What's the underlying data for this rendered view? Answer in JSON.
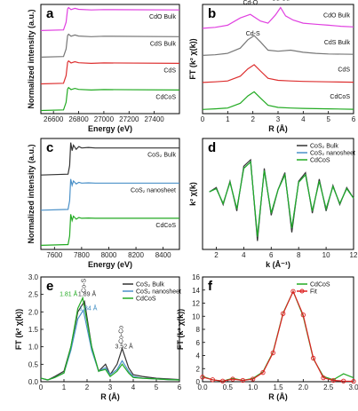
{
  "chart_data": [
    {
      "id": "a",
      "type": "line",
      "panel_label": "a",
      "xlabel": "Energy (eV)",
      "ylabel": "Normalized intensity (a.u.)",
      "xlim": [
        26500,
        27600
      ],
      "xticks": [
        26600,
        26800,
        27000,
        27200,
        27400
      ],
      "stacked_offset": 1.3,
      "series": [
        {
          "name": "CdO Bulk",
          "color": "#e040e0",
          "x": [
            26500,
            26680,
            26700,
            26712,
            26720,
            26740,
            26770,
            26800,
            26900,
            27000,
            27600
          ],
          "values": [
            0,
            0.03,
            0.4,
            1.05,
            1.12,
            1.02,
            1.08,
            1.03,
            1.0,
            1.02,
            1.0
          ]
        },
        {
          "name": "CdS Bulk",
          "color": "#777777",
          "x": [
            26500,
            26680,
            26700,
            26712,
            26720,
            26740,
            26770,
            26800,
            26900,
            27000,
            27600
          ],
          "values": [
            0,
            0.03,
            0.4,
            1.05,
            1.12,
            1.02,
            1.08,
            1.03,
            1.0,
            1.02,
            1.0
          ]
        },
        {
          "name": "CdS",
          "color": "#dd3030",
          "x": [
            26500,
            26680,
            26700,
            26712,
            26720,
            26740,
            26770,
            26800,
            26900,
            27000,
            27600
          ],
          "values": [
            0,
            0.03,
            0.4,
            1.05,
            1.12,
            1.02,
            1.08,
            1.03,
            1.0,
            1.02,
            1.0
          ]
        },
        {
          "name": "CdCoS",
          "color": "#22aa22",
          "x": [
            26500,
            26680,
            26700,
            26712,
            26720,
            26740,
            26770,
            26800,
            26900,
            27000,
            27600
          ],
          "values": [
            0,
            0.03,
            0.4,
            1.05,
            1.12,
            1.02,
            1.08,
            1.03,
            1.0,
            1.02,
            1.0
          ]
        }
      ]
    },
    {
      "id": "b",
      "type": "line",
      "panel_label": "b",
      "xlabel": "R (Å)",
      "ylabel": "FT (k² χ(k))",
      "xlim": [
        0,
        6
      ],
      "xticks": [
        0,
        1,
        2,
        3,
        4,
        5,
        6
      ],
      "stacked_offset": 1.3,
      "series": [
        {
          "name": "CdO Bulk",
          "color": "#e040e0",
          "x": [
            0,
            0.5,
            1.0,
            1.5,
            1.9,
            2.3,
            2.6,
            2.9,
            3.1,
            3.3,
            3.6,
            4.0,
            4.5,
            5.0,
            5.5,
            6.0
          ],
          "values": [
            0.05,
            0.1,
            0.2,
            0.55,
            0.72,
            0.4,
            0.3,
            0.7,
            1.05,
            0.65,
            0.45,
            0.3,
            0.25,
            0.2,
            0.15,
            0.12
          ]
        },
        {
          "name": "CdS Bulk",
          "color": "#777777",
          "x": [
            0,
            0.5,
            1.0,
            1.5,
            1.8,
            2.05,
            2.3,
            2.6,
            3.0,
            3.5,
            4.0,
            4.5,
            5.0,
            6.0
          ],
          "values": [
            0.05,
            0.08,
            0.15,
            0.4,
            0.8,
            1.0,
            0.7,
            0.3,
            0.25,
            0.3,
            0.2,
            0.15,
            0.12,
            0.1
          ]
        },
        {
          "name": "CdS",
          "color": "#dd3030",
          "x": [
            0,
            0.5,
            1.0,
            1.5,
            1.8,
            2.05,
            2.3,
            2.6,
            3.0,
            3.5,
            4.0,
            5.0,
            6.0
          ],
          "values": [
            0.05,
            0.08,
            0.12,
            0.35,
            0.7,
            0.9,
            0.6,
            0.25,
            0.15,
            0.12,
            0.1,
            0.08,
            0.06
          ]
        },
        {
          "name": "CdCoS",
          "color": "#22aa22",
          "x": [
            0,
            0.5,
            1.0,
            1.5,
            1.8,
            2.05,
            2.3,
            2.6,
            3.0,
            3.5,
            4.0,
            5.0,
            6.0
          ],
          "values": [
            0.05,
            0.08,
            0.12,
            0.35,
            0.7,
            0.9,
            0.6,
            0.25,
            0.15,
            0.12,
            0.1,
            0.08,
            0.06
          ]
        }
      ],
      "annotations": [
        {
          "text": "Cd-O",
          "x": 1.9,
          "y": 5.1
        },
        {
          "text": "Cd-Cd",
          "x": 3.1,
          "y": 5.3
        },
        {
          "text": "Cd-S",
          "x": 2.0,
          "y": 3.6
        }
      ]
    },
    {
      "id": "c",
      "type": "line",
      "panel_label": "c",
      "xlabel": "Energy (eV)",
      "ylabel": "Normalized intensity (a.u.)",
      "xlim": [
        7500,
        8520
      ],
      "xticks": [
        7600,
        7800,
        8000,
        8200,
        8400
      ],
      "stacked_offset": 1.3,
      "series": [
        {
          "name": "CoS₂ Bulk",
          "color": "#333333",
          "x": [
            7500,
            7700,
            7712,
            7720,
            7730,
            7740,
            7760,
            7780,
            7800,
            7850,
            7900,
            8520
          ],
          "values": [
            0,
            0.03,
            0.35,
            1.2,
            0.9,
            1.1,
            0.95,
            1.05,
            1.0,
            1.02,
            1.0,
            1.0
          ]
        },
        {
          "name": "CoS₂ nanosheet",
          "color": "#4a90c8",
          "x": [
            7500,
            7700,
            7712,
            7720,
            7730,
            7740,
            7760,
            7780,
            7800,
            7850,
            7900,
            8520
          ],
          "values": [
            0,
            0.03,
            0.35,
            1.15,
            0.92,
            1.08,
            0.97,
            1.03,
            1.0,
            1.01,
            1.0,
            1.0
          ]
        },
        {
          "name": "CdCoS",
          "color": "#22aa22",
          "x": [
            7500,
            7700,
            7712,
            7720,
            7730,
            7740,
            7760,
            7780,
            7800,
            7850,
            7900,
            8520
          ],
          "values": [
            0,
            0.03,
            0.35,
            1.15,
            0.92,
            1.08,
            0.97,
            1.03,
            1.0,
            1.01,
            1.0,
            1.0
          ]
        }
      ]
    },
    {
      "id": "d",
      "type": "line",
      "panel_label": "d",
      "xlabel": "k (Å⁻¹)",
      "ylabel": "k² χ(k)",
      "xlim": [
        1,
        12
      ],
      "xticks": [
        2,
        4,
        6,
        8,
        10,
        12
      ],
      "ylim": [
        -2.6,
        2.6
      ],
      "series": [
        {
          "name": "CoS₂ Bulk",
          "color": "#333333",
          "x": [
            1.5,
            2.0,
            2.5,
            3.0,
            3.5,
            4.0,
            4.5,
            5.0,
            5.5,
            6.0,
            6.5,
            7.0,
            7.5,
            8.0,
            8.5,
            9.0,
            9.5,
            10.0,
            10.5,
            11.0,
            11.5,
            12.0
          ],
          "values": [
            0.1,
            0.3,
            -0.5,
            0.6,
            -0.8,
            1.3,
            1.6,
            -2.2,
            1.2,
            -1.0,
            0.2,
            1.0,
            -1.8,
            0.6,
            1.0,
            -0.9,
            0.7,
            -0.8,
            0.4,
            -0.5,
            0.3,
            -0.2
          ]
        },
        {
          "name": "CoS₂ nanosheet",
          "color": "#4a90c8",
          "x": [
            1.5,
            2.0,
            2.5,
            3.0,
            3.5,
            4.0,
            4.5,
            5.0,
            5.5,
            6.0,
            6.5,
            7.0,
            7.5,
            8.0,
            8.5,
            9.0,
            9.5,
            10.0,
            10.5,
            11.0,
            11.5,
            12.0
          ],
          "values": [
            0.1,
            0.25,
            -0.45,
            0.55,
            -0.7,
            1.2,
            1.5,
            -2.0,
            1.1,
            -0.9,
            0.2,
            0.9,
            -1.6,
            0.55,
            0.9,
            -0.8,
            0.6,
            -0.7,
            0.35,
            -0.45,
            0.25,
            -0.2
          ]
        },
        {
          "name": "CdCoS",
          "color": "#22aa22",
          "x": [
            1.5,
            2.0,
            2.5,
            3.0,
            3.5,
            4.0,
            4.5,
            5.0,
            5.5,
            6.0,
            6.5,
            7.0,
            7.5,
            8.0,
            8.5,
            9.0,
            9.5,
            10.0,
            10.5,
            11.0,
            11.5,
            12.0
          ],
          "values": [
            0.1,
            0.25,
            -0.45,
            0.55,
            -0.7,
            1.2,
            1.5,
            -2.0,
            1.1,
            -0.9,
            0.2,
            0.9,
            -1.6,
            0.55,
            0.9,
            -0.8,
            0.6,
            -0.7,
            0.35,
            -0.45,
            0.25,
            -0.2
          ]
        }
      ],
      "legend": "top-right"
    },
    {
      "id": "e",
      "type": "line",
      "panel_label": "e",
      "xlabel": "R (Å)",
      "ylabel": "FT (k² χ(k))",
      "xlim": [
        0,
        6
      ],
      "xticks": [
        0,
        1,
        2,
        3,
        4,
        5,
        6
      ],
      "ylim": [
        0,
        3.0
      ],
      "yticks": [
        0.0,
        0.5,
        1.0,
        1.5,
        2.0,
        2.5,
        3.0
      ],
      "series": [
        {
          "name": "CoS₂ Bulk",
          "color": "#333333",
          "x": [
            0,
            0.3,
            0.6,
            1.0,
            1.3,
            1.6,
            1.89,
            2.2,
            2.5,
            2.8,
            3.0,
            3.3,
            3.52,
            3.8,
            4.0,
            4.4,
            5.0,
            5.5,
            6.0
          ],
          "values": [
            0.1,
            0.05,
            0.15,
            0.3,
            1.0,
            2.0,
            2.3,
            1.0,
            0.3,
            0.5,
            0.2,
            0.5,
            0.95,
            0.4,
            0.2,
            0.15,
            0.1,
            0.08,
            0.06
          ]
        },
        {
          "name": "CoS₂ nanosheet",
          "color": "#4a90c8",
          "x": [
            0,
            0.3,
            0.6,
            1.0,
            1.3,
            1.6,
            1.84,
            2.2,
            2.5,
            2.8,
            3.0,
            3.3,
            3.52,
            3.8,
            4.0,
            4.4,
            5.0,
            5.5,
            6.0
          ],
          "values": [
            0.1,
            0.05,
            0.12,
            0.25,
            0.9,
            1.8,
            2.05,
            0.9,
            0.3,
            0.4,
            0.2,
            0.35,
            0.6,
            0.3,
            0.15,
            0.1,
            0.08,
            0.06,
            0.05
          ]
        },
        {
          "name": "CdCoS",
          "color": "#22aa22",
          "x": [
            0,
            0.3,
            0.6,
            1.0,
            1.3,
            1.6,
            1.81,
            2.2,
            2.5,
            2.8,
            3.0,
            3.3,
            3.52,
            3.8,
            4.0,
            4.4,
            5.0,
            5.5,
            6.0
          ],
          "values": [
            0.1,
            0.05,
            0.12,
            0.25,
            1.0,
            2.1,
            2.4,
            1.0,
            0.3,
            0.35,
            0.15,
            0.3,
            0.5,
            0.25,
            0.12,
            0.1,
            0.08,
            0.06,
            0.05
          ]
        }
      ],
      "annotations": [
        {
          "text": "1.81 Å",
          "x": 1.2,
          "y": 2.45,
          "color": "#22aa22"
        },
        {
          "text": "1.89 Å",
          "x": 2.0,
          "y": 2.45,
          "color": "#333333"
        },
        {
          "text": "1.84 Å",
          "x": 2.05,
          "y": 2.05,
          "color": "#3a8ac0"
        },
        {
          "text": "Co-S",
          "x": 1.95,
          "y": 2.75,
          "color": "#333333",
          "rotate": true
        },
        {
          "text": "Co-Co",
          "x": 3.55,
          "y": 1.35,
          "color": "#333333",
          "rotate": true
        },
        {
          "text": "3.52 Å",
          "x": 3.6,
          "y": 0.95,
          "color": "#333333"
        }
      ],
      "legend": "top-right"
    },
    {
      "id": "f",
      "type": "line",
      "panel_label": "f",
      "xlabel": "R (Å)",
      "ylabel": "FT (k² χ(k))",
      "xlim": [
        0,
        3.0
      ],
      "xticks": [
        0.0,
        0.5,
        1.0,
        1.5,
        2.0,
        2.5,
        3.0
      ],
      "ylim": [
        0,
        16
      ],
      "yticks": [
        0,
        2,
        4,
        6,
        8,
        10,
        12,
        14,
        16
      ],
      "series": [
        {
          "name": "CdCoS",
          "color": "#22aa22",
          "x": [
            0,
            0.2,
            0.4,
            0.6,
            0.8,
            1.0,
            1.2,
            1.4,
            1.6,
            1.8,
            2.0,
            2.2,
            2.4,
            2.6,
            2.8,
            3.0
          ],
          "values": [
            0.8,
            0.3,
            0.1,
            0.5,
            0.2,
            0.5,
            1.5,
            4.5,
            10.5,
            13.8,
            10.0,
            3.5,
            0.8,
            0.3,
            1.2,
            0.6
          ]
        },
        {
          "name": "Fit",
          "color": "#dd2222",
          "x": [
            0,
            0.2,
            0.4,
            0.6,
            0.8,
            1.0,
            1.2,
            1.4,
            1.6,
            1.8,
            2.0,
            2.2,
            2.4,
            2.6,
            2.8,
            3.0
          ],
          "values": [
            0.7,
            0.3,
            0.1,
            0.4,
            0.2,
            0.4,
            1.4,
            4.4,
            10.4,
            13.8,
            10.2,
            3.6,
            0.6,
            0.2,
            0.1,
            0.05
          ],
          "markers": true
        }
      ],
      "legend": "top-right"
    }
  ]
}
